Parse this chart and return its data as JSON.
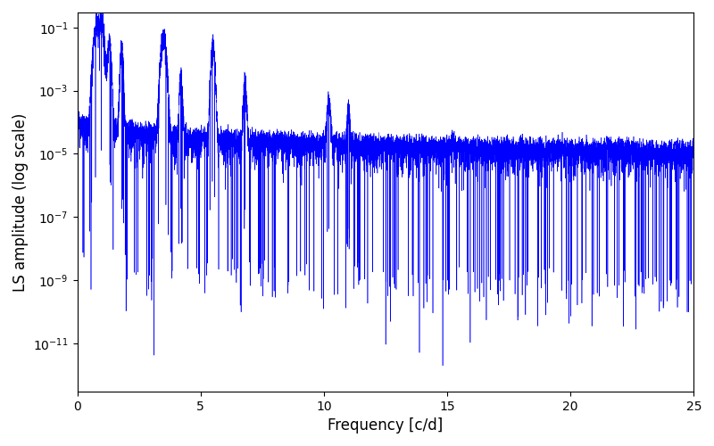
{
  "xlabel": "Frequency [c/d]",
  "ylabel": "LS amplitude (log scale)",
  "xlim": [
    0,
    25
  ],
  "ylim": [
    3e-13,
    0.3
  ],
  "line_color": "#0000ff",
  "line_width": 0.4,
  "yscale": "log",
  "figsize": [
    8.0,
    5.0
  ],
  "dpi": 100,
  "background_color": "#ffffff",
  "yticks": [
    1e-11,
    1e-09,
    1e-07,
    1e-05,
    0.001,
    0.1
  ],
  "xticks": [
    0,
    5,
    10,
    15,
    20,
    25
  ],
  "n_points": 8000,
  "seed": 12345
}
